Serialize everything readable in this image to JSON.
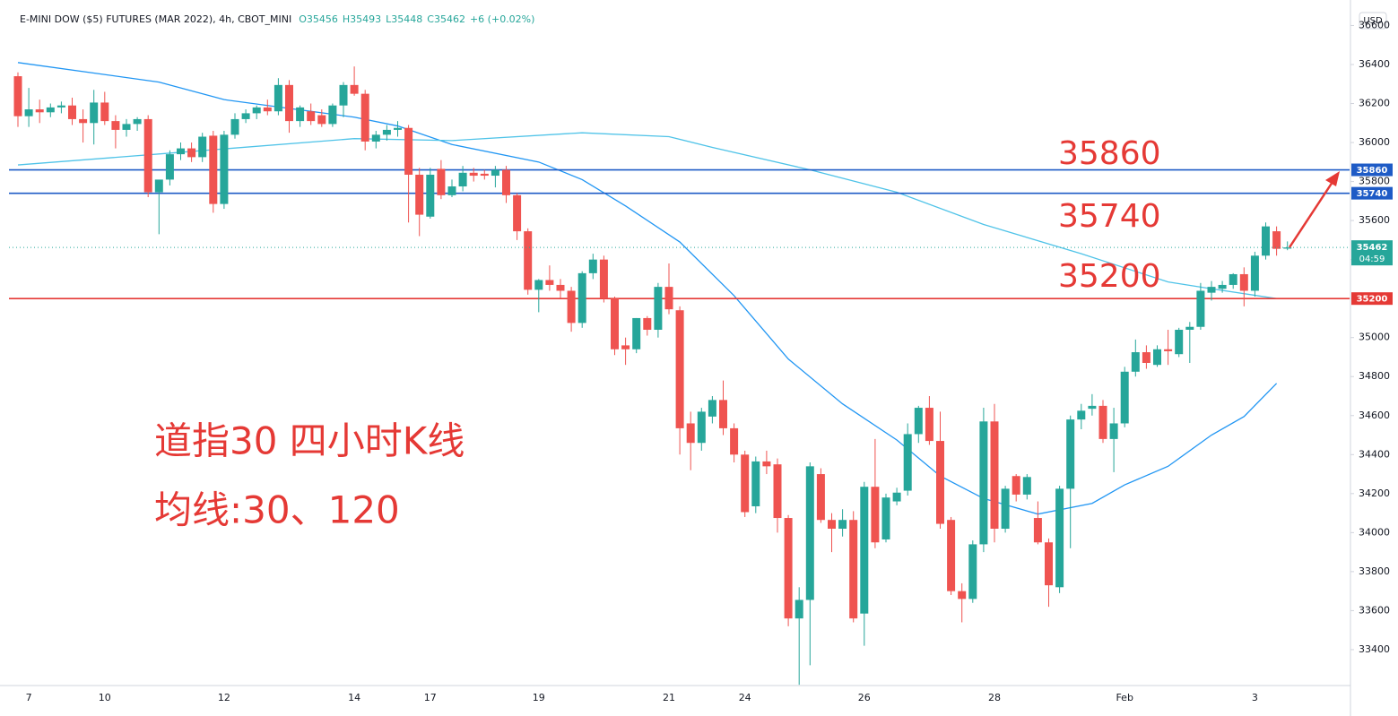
{
  "chart_data": {
    "type": "candlestick",
    "header": {
      "symbol": "E-MINI DOW ($5) FUTURES (MAR 2022), 4h, CBOT_MINI",
      "open": "O35456",
      "high": "H35493",
      "low": "L35448",
      "close": "C35462",
      "change": "+6 (+0.02%)"
    },
    "currency": "USD",
    "countdown": "04:59",
    "up_color": "#26a69a",
    "down_color": "#ef5350",
    "ylim": [
      33216,
      36694
    ],
    "yticks": [
      33400,
      33600,
      33800,
      34000,
      34200,
      34400,
      34600,
      34800,
      35000,
      35200,
      35400,
      35600,
      35800,
      36000,
      36200,
      36400,
      36600
    ],
    "grid": false,
    "categories": [
      null,
      "7",
      null,
      null,
      null,
      null,
      null,
      null,
      "10",
      null,
      null,
      null,
      null,
      null,
      null,
      null,
      null,
      null,
      null,
      "12",
      null,
      null,
      null,
      null,
      null,
      null,
      null,
      null,
      null,
      null,
      null,
      "14",
      null,
      null,
      null,
      null,
      null,
      null,
      "17",
      null,
      null,
      null,
      null,
      null,
      null,
      null,
      null,
      null,
      "19",
      null,
      null,
      null,
      null,
      null,
      null,
      null,
      null,
      null,
      null,
      null,
      "21",
      null,
      null,
      null,
      null,
      null,
      null,
      "24",
      null,
      null,
      null,
      null,
      null,
      null,
      null,
      null,
      null,
      null,
      "26",
      null,
      null,
      null,
      null,
      null,
      null,
      null,
      null,
      null,
      null,
      null,
      "28",
      null,
      null,
      null,
      null,
      null,
      null,
      null,
      null,
      null,
      null,
      null,
      "Feb",
      null,
      null,
      null,
      null,
      null,
      null,
      null,
      null,
      null,
      null,
      null,
      "3",
      null,
      null,
      null
    ],
    "ohlc": [
      [
        36340,
        36360,
        36080,
        36135
      ],
      [
        36135,
        36280,
        36080,
        36170
      ],
      [
        36170,
        36220,
        36100,
        36155
      ],
      [
        36155,
        36200,
        36130,
        36180
      ],
      [
        36180,
        36210,
        36150,
        36190
      ],
      [
        36190,
        36230,
        36090,
        36120
      ],
      [
        36120,
        36170,
        36000,
        36100
      ],
      [
        36100,
        36270,
        35990,
        36205
      ],
      [
        36205,
        36260,
        36090,
        36110
      ],
      [
        36110,
        36140,
        35970,
        36065
      ],
      [
        36065,
        36120,
        36030,
        36095
      ],
      [
        36095,
        36130,
        36060,
        36120
      ],
      [
        36120,
        36140,
        35720,
        35745
      ],
      [
        35745,
        35800,
        35530,
        35810
      ],
      [
        35810,
        35960,
        35780,
        35940
      ],
      [
        35940,
        36000,
        35910,
        35970
      ],
      [
        35970,
        36000,
        35900,
        35925
      ],
      [
        35925,
        36050,
        35900,
        36030
      ],
      [
        36035,
        36060,
        35640,
        35685
      ],
      [
        35685,
        36060,
        35660,
        36040
      ],
      [
        36040,
        36150,
        36020,
        36120
      ],
      [
        36120,
        36170,
        36100,
        36150
      ],
      [
        36150,
        36190,
        36120,
        36180
      ],
      [
        36180,
        36220,
        36140,
        36160
      ],
      [
        36160,
        36330,
        36140,
        36295
      ],
      [
        36295,
        36320,
        36050,
        36110
      ],
      [
        36110,
        36190,
        36080,
        36180
      ],
      [
        36160,
        36200,
        36090,
        36110
      ],
      [
        36140,
        36170,
        36080,
        36095
      ],
      [
        36095,
        36200,
        36080,
        36190
      ],
      [
        36190,
        36310,
        36130,
        36295
      ],
      [
        36295,
        36390,
        36240,
        36250
      ],
      [
        36250,
        36270,
        35960,
        36005
      ],
      [
        36005,
        36060,
        35970,
        36040
      ],
      [
        36040,
        36090,
        36010,
        36065
      ],
      [
        36065,
        36110,
        36030,
        36075
      ],
      [
        36075,
        36090,
        35590,
        35835
      ],
      [
        35835,
        35870,
        35520,
        35630
      ],
      [
        35620,
        35870,
        35610,
        35835
      ],
      [
        35865,
        35910,
        35710,
        35730
      ],
      [
        35730,
        35810,
        35720,
        35775
      ],
      [
        35775,
        35880,
        35750,
        35845
      ],
      [
        35845,
        35870,
        35800,
        35830
      ],
      [
        35840,
        35860,
        35810,
        35830
      ],
      [
        35830,
        35880,
        35770,
        35860
      ],
      [
        35860,
        35880,
        35690,
        35730
      ],
      [
        35730,
        35740,
        35500,
        35545
      ],
      [
        35545,
        35560,
        35220,
        35245
      ],
      [
        35245,
        35300,
        35130,
        35295
      ],
      [
        35295,
        35370,
        35240,
        35270
      ],
      [
        35270,
        35300,
        35200,
        35240
      ],
      [
        35240,
        35260,
        35030,
        35075
      ],
      [
        35075,
        35340,
        35050,
        35330
      ],
      [
        35330,
        35430,
        35300,
        35400
      ],
      [
        35400,
        35420,
        35180,
        35200
      ],
      [
        35200,
        35210,
        34910,
        34940
      ],
      [
        34960,
        35000,
        34860,
        34940
      ],
      [
        34940,
        35100,
        34920,
        35100
      ],
      [
        35100,
        35110,
        35010,
        35040
      ],
      [
        35040,
        35280,
        35000,
        35260
      ],
      [
        35260,
        35380,
        35120,
        35145
      ],
      [
        35140,
        35160,
        34400,
        34535
      ],
      [
        34560,
        34620,
        34320,
        34460
      ],
      [
        34460,
        34640,
        34420,
        34620
      ],
      [
        34595,
        34700,
        34560,
        34680
      ],
      [
        34680,
        34780,
        34500,
        34535
      ],
      [
        34535,
        34560,
        34360,
        34400
      ],
      [
        34400,
        34420,
        34080,
        34105
      ],
      [
        34135,
        34390,
        34100,
        34365
      ],
      [
        34365,
        34420,
        34300,
        34340
      ],
      [
        34350,
        34380,
        34000,
        34075
      ],
      [
        34075,
        34090,
        33520,
        33560
      ],
      [
        33560,
        33720,
        33220,
        33655
      ],
      [
        33655,
        34360,
        33320,
        34340
      ],
      [
        34300,
        34330,
        34050,
        34065
      ],
      [
        34065,
        34100,
        33900,
        34020
      ],
      [
        34020,
        34120,
        33980,
        34065
      ],
      [
        34065,
        34110,
        33540,
        33560
      ],
      [
        33585,
        34260,
        33420,
        34235
      ],
      [
        34235,
        34480,
        33920,
        33950
      ],
      [
        33965,
        34200,
        33950,
        34180
      ],
      [
        34160,
        34230,
        34140,
        34205
      ],
      [
        34215,
        34560,
        34190,
        34505
      ],
      [
        34505,
        34650,
        34460,
        34640
      ],
      [
        34640,
        34700,
        34450,
        34470
      ],
      [
        34470,
        34620,
        34020,
        34045
      ],
      [
        34065,
        34080,
        33680,
        33700
      ],
      [
        33700,
        33740,
        33540,
        33660
      ],
      [
        33660,
        33960,
        33640,
        33940
      ],
      [
        33940,
        34640,
        33900,
        34570
      ],
      [
        34570,
        34660,
        33950,
        34020
      ],
      [
        34020,
        34240,
        34000,
        34225
      ],
      [
        34290,
        34300,
        34160,
        34195
      ],
      [
        34195,
        34300,
        34170,
        34285
      ],
      [
        34075,
        34160,
        33940,
        33950
      ],
      [
        33950,
        33970,
        33620,
        33730
      ],
      [
        33720,
        34240,
        33690,
        34225
      ],
      [
        34225,
        34600,
        33920,
        34580
      ],
      [
        34580,
        34660,
        34530,
        34625
      ],
      [
        34635,
        34710,
        34600,
        34650
      ],
      [
        34650,
        34680,
        34460,
        34480
      ],
      [
        34480,
        34640,
        34310,
        34560
      ],
      [
        34560,
        34850,
        34540,
        34825
      ],
      [
        34825,
        34990,
        34800,
        34925
      ],
      [
        34925,
        34960,
        34840,
        34870
      ],
      [
        34860,
        34960,
        34850,
        34940
      ],
      [
        34940,
        35040,
        34860,
        34930
      ],
      [
        34915,
        35050,
        34900,
        35040
      ],
      [
        35040,
        35080,
        34870,
        35055
      ],
      [
        35055,
        35280,
        35040,
        35240
      ],
      [
        35230,
        35290,
        35190,
        35260
      ],
      [
        35250,
        35290,
        35230,
        35270
      ],
      [
        35270,
        35330,
        35250,
        35325
      ],
      [
        35325,
        35360,
        35160,
        35240
      ],
      [
        35240,
        35440,
        35210,
        35420
      ],
      [
        35420,
        35590,
        35400,
        35570
      ],
      [
        35545,
        35570,
        35420,
        35455
      ],
      [
        35456,
        35493,
        35448,
        35462
      ]
    ],
    "moving_averages": [
      {
        "color": "#2196f3",
        "x": [
          0,
          13,
          19,
          31,
          35,
          40,
          48,
          52,
          56,
          61,
          66,
          71,
          76,
          81,
          85,
          89,
          94,
          99,
          102,
          106,
          110,
          113,
          116
        ],
        "values": [
          36410,
          36310,
          36220,
          36130,
          36085,
          35990,
          35900,
          35810,
          35675,
          35490,
          35215,
          34890,
          34660,
          34475,
          34290,
          34175,
          34095,
          34150,
          34245,
          34340,
          34500,
          34595,
          34765
        ]
      },
      {
        "color": "#4fc3e8",
        "x": [
          0,
          15,
          31,
          40,
          52,
          60,
          64,
          73,
          81,
          89,
          98,
          106,
          110,
          116
        ],
        "values": [
          35885,
          35950,
          36020,
          36010,
          36050,
          36030,
          35975,
          35860,
          35745,
          35580,
          35430,
          35285,
          35250,
          35200
        ]
      }
    ],
    "hlines": [
      {
        "value": 35860,
        "color": "#1e5bc6"
      },
      {
        "value": 35740,
        "color": "#1e5bc6"
      },
      {
        "value": 35200,
        "color": "#e53935"
      }
    ],
    "annotations": [
      {
        "text": "35860",
        "color": "#e53935"
      },
      {
        "text": "35740",
        "color": "#e53935"
      },
      {
        "text": "35200",
        "color": "#e53935"
      },
      {
        "text": "道指30 四小时K线",
        "color": "#e53935"
      },
      {
        "text": "均线:30、120",
        "color": "#e53935"
      }
    ]
  }
}
